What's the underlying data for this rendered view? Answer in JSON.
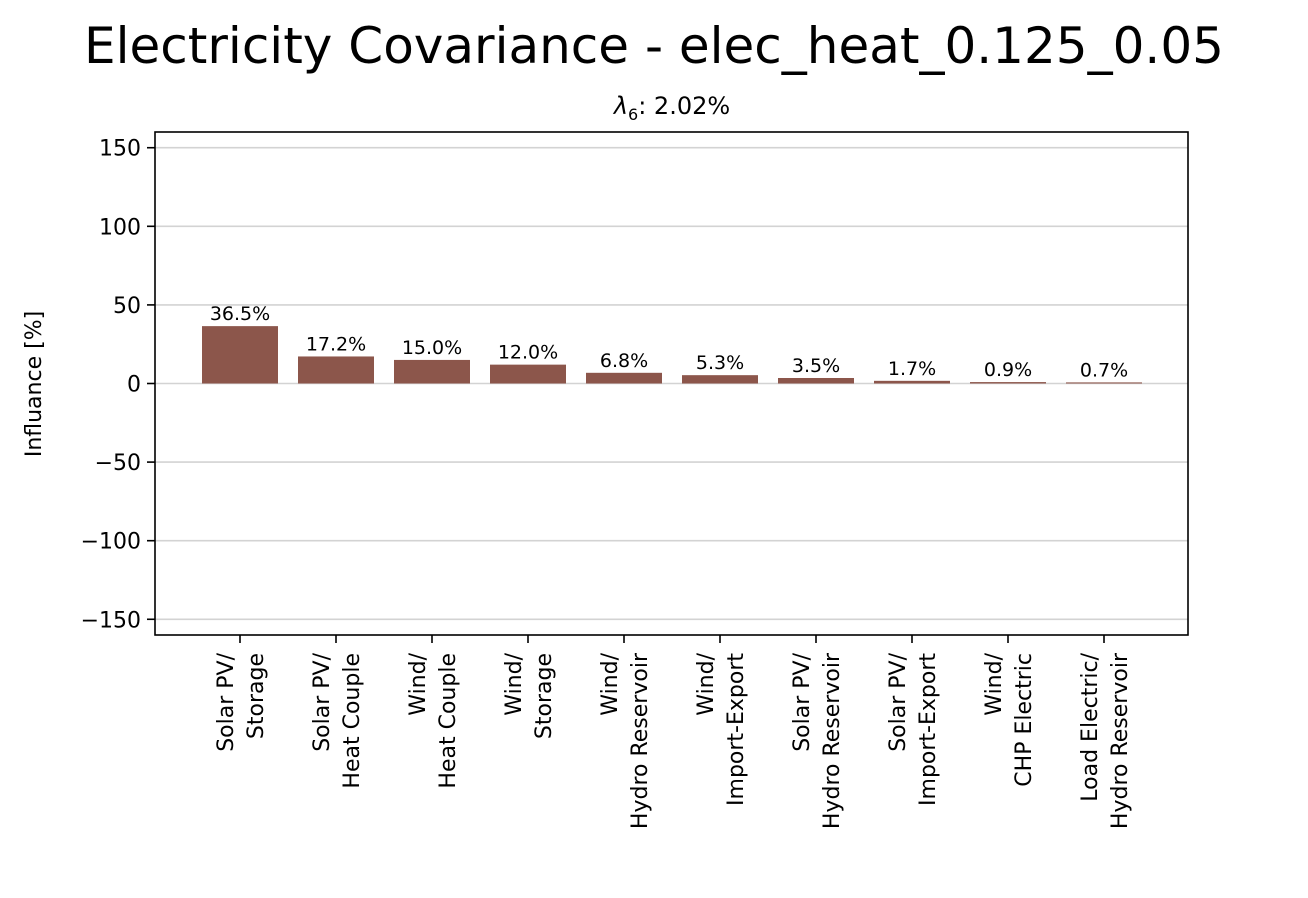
{
  "chart_data": {
    "type": "bar",
    "title": "Electricity Covariance - elec_heat_0.125_0.05",
    "subtitle": "λ6: 2.02%",
    "subtitle_parts": {
      "symbol": "λ",
      "subscript": "6",
      "rest": ": 2.02%"
    },
    "xlabel": "",
    "ylabel": "Influance [%]",
    "ylim": [
      -160,
      160
    ],
    "yticks": [
      150,
      100,
      50,
      0,
      -50,
      -100,
      -150
    ],
    "ytick_labels": [
      "150",
      "100",
      "50",
      "0",
      "−50",
      "−100",
      "−150"
    ],
    "grid": "y",
    "bar_color": "#8c564b",
    "categories": [
      [
        "Solar PV/",
        "Storage"
      ],
      [
        "Solar PV/",
        "Heat Couple"
      ],
      [
        "Wind/",
        "Heat Couple"
      ],
      [
        "Wind/",
        "Storage"
      ],
      [
        "Wind/",
        "Hydro Reservoir"
      ],
      [
        "Wind/",
        "Import-Export"
      ],
      [
        "Solar PV/",
        "Hydro Reservoir"
      ],
      [
        "Solar PV/",
        "Import-Export"
      ],
      [
        "Wind/",
        "CHP Electric"
      ],
      [
        "Load Electric/",
        "Hydro Reservoir"
      ]
    ],
    "values": [
      36.5,
      17.2,
      15.0,
      12.0,
      6.8,
      5.3,
      3.5,
      1.7,
      0.9,
      0.7
    ],
    "data_labels": [
      "36.5%",
      "17.2%",
      "15.0%",
      "12.0%",
      "6.8%",
      "5.3%",
      "3.5%",
      "1.7%",
      "0.9%",
      "0.7%"
    ]
  }
}
